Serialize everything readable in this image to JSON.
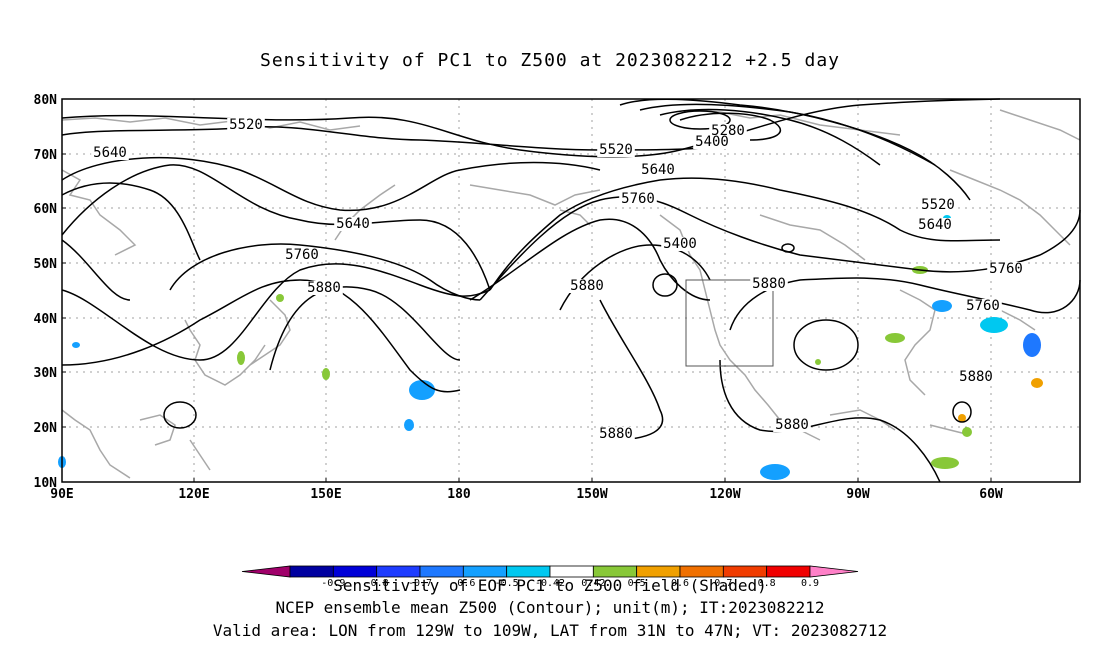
{
  "title": "Sensitivity of PC1 to Z500 at 2023082212 +2.5 day",
  "lat_labels": [
    "80N",
    "70N",
    "60N",
    "50N",
    "40N",
    "30N",
    "20N",
    "10N"
  ],
  "lon_labels": [
    "90E",
    "120E",
    "150E",
    "180",
    "150W",
    "120W",
    "90W",
    "60W"
  ],
  "contour_labels": [
    {
      "text": "5280"
    },
    {
      "text": "5400"
    },
    {
      "text": "5520"
    },
    {
      "text": "5520"
    },
    {
      "text": "5640"
    },
    {
      "text": "5640"
    },
    {
      "text": "5640"
    },
    {
      "text": "5760"
    },
    {
      "text": "5760"
    },
    {
      "text": "5400"
    },
    {
      "text": "5520"
    },
    {
      "text": "5640"
    },
    {
      "text": "5760"
    },
    {
      "text": "5760"
    },
    {
      "text": "5880"
    },
    {
      "text": "5880"
    },
    {
      "text": "5880"
    },
    {
      "text": "5880"
    },
    {
      "text": "5880"
    },
    {
      "text": "5880"
    }
  ],
  "colorbar": {
    "labels": [
      "-0.9",
      "-0.8",
      "-0.7",
      "-0.6",
      "-0.5",
      "-0.42",
      "0.42",
      "0.5",
      "0.6",
      "0.7",
      "0.8",
      "0.9"
    ],
    "colors": [
      "#a0006a",
      "#0000a0",
      "#0000d8",
      "#1e3cff",
      "#1e78ff",
      "#14a0ff",
      "#00c8f0",
      "#ffffff",
      "#88c838",
      "#f0a000",
      "#f07000",
      "#f03c00",
      "#f00000",
      "#ff80c8"
    ]
  },
  "captions": {
    "line1": "Sensitivity of EOF PC1 to Z500 field (Shaded)",
    "line2": "NCEP ensemble mean Z500 (Contour); unit(m); IT:2023082212",
    "line3": "Valid area: LON from 129W to 109W, LAT from 31N to 47N; VT: 2023082712"
  },
  "colors": {
    "contour": "#000000",
    "coast": "#a8a8a8",
    "grid": "#a0a0a0",
    "shade_blue": "#14a0ff",
    "shade_cyan": "#00c8f0",
    "shade_green": "#88c838",
    "shade_orange": "#f0a000"
  }
}
